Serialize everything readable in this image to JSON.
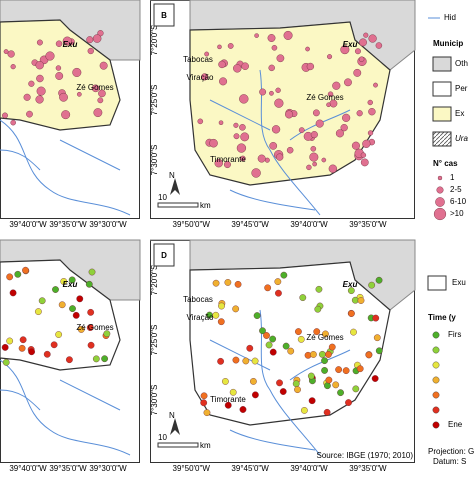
{
  "panels": [
    {
      "places": [
        "Exu",
        "Zé Gomes"
      ],
      "lon_ticks": [
        "39°40'0\"W",
        "39°35'0\"W",
        "39°30'0\"W"
      ]
    },
    {
      "letter": "B",
      "places": [
        "Exu",
        "Tabocas",
        "Viração",
        "Zé Gomes",
        "Timorante"
      ],
      "lon_ticks": [
        "39°50'0\"W",
        "39°45'0\"W",
        "39°40'0\"W",
        "39°35'0\"W"
      ],
      "lat_ticks": [
        "7°20'0\"S",
        "7°25'0\"S",
        "7°30'0\"S"
      ],
      "north": "N",
      "scale": "10",
      "scale_unit": "km"
    },
    {
      "places": [
        "Exu",
        "Zé Gomes"
      ],
      "lon_ticks": [
        "39°40'0\"W",
        "39°35'0\"W",
        "39°30'0\"W"
      ]
    },
    {
      "letter": "D",
      "places": [
        "Exu",
        "Tabocas",
        "Viração",
        "Zé Gomes",
        "Timorante"
      ],
      "lon_ticks": [
        "39°50'0\"W",
        "39°45'0\"W",
        "39°40'0\"W",
        "39°35'0\"W"
      ],
      "lat_ticks": [
        "7°20'0\"S",
        "7°25'0\"S",
        "7°30'0\"S"
      ],
      "north": "N",
      "scale": "10",
      "scale_unit": "km",
      "source": "Source: IBGE (1970; 2010)"
    }
  ],
  "legend": {
    "river": "Hid",
    "municipalities": "Municip",
    "items": [
      "Oth",
      "Per",
      "Ex",
      "Ura"
    ],
    "cases_title": "N° cas",
    "cases": [
      "1",
      "2-5",
      "6-10",
      ">10"
    ],
    "exu": "Exu",
    "time_title": "Time (y",
    "first": "Firs",
    "end": "Ene",
    "projection": "Projection: G",
    "datum": "Datum: S"
  }
}
